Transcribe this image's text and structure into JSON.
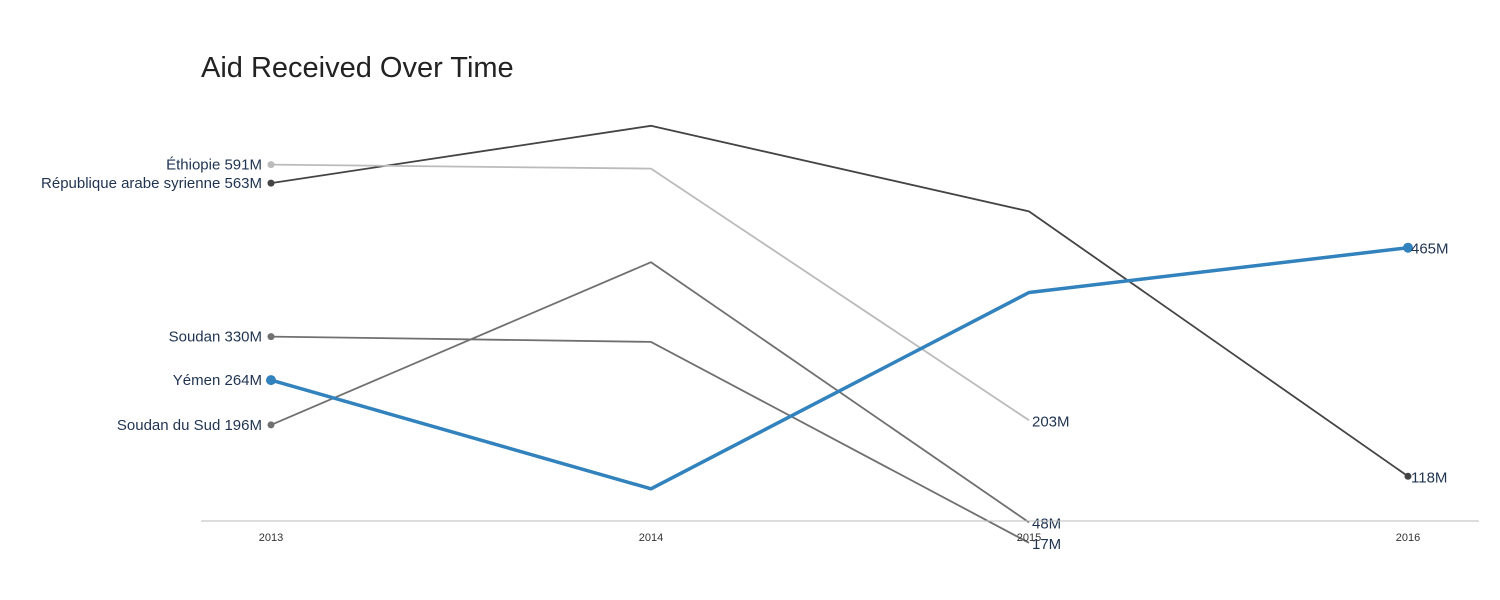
{
  "chart_data": {
    "type": "line",
    "title": "Aid Received Over Time",
    "xlabel": "",
    "ylabel": "",
    "x": [
      "2013",
      "2014",
      "2015",
      "2016"
    ],
    "ylim": [
      0,
      700
    ],
    "grid": false,
    "legend": "none",
    "series": [
      {
        "name": "République arabe syrienne",
        "values": [
          563,
          650,
          520,
          118
        ],
        "start_label": "République arabe syrienne 563M",
        "end_label": "118M",
        "color": "#444444",
        "highlight": false
      },
      {
        "name": "Éthiopie",
        "values": [
          591,
          585,
          203,
          null
        ],
        "start_label": "Éthiopie 591M",
        "end_label": "203M",
        "color": "#bbbbbb",
        "highlight": false
      },
      {
        "name": "Soudan du Sud",
        "values": [
          196,
          443,
          48,
          null
        ],
        "start_label": "Soudan du Sud 196M",
        "end_label": "48M",
        "color": "#707070",
        "highlight": false
      },
      {
        "name": "Soudan",
        "values": [
          330,
          322,
          17,
          null
        ],
        "start_label": "Soudan 330M",
        "end_label": "17M",
        "color": "#707070",
        "highlight": false
      },
      {
        "name": "Yémen",
        "values": [
          264,
          99,
          397,
          465
        ],
        "start_label": "Yémen 264M",
        "end_label": "465M",
        "color": "#3182bd",
        "highlight": true
      }
    ]
  }
}
